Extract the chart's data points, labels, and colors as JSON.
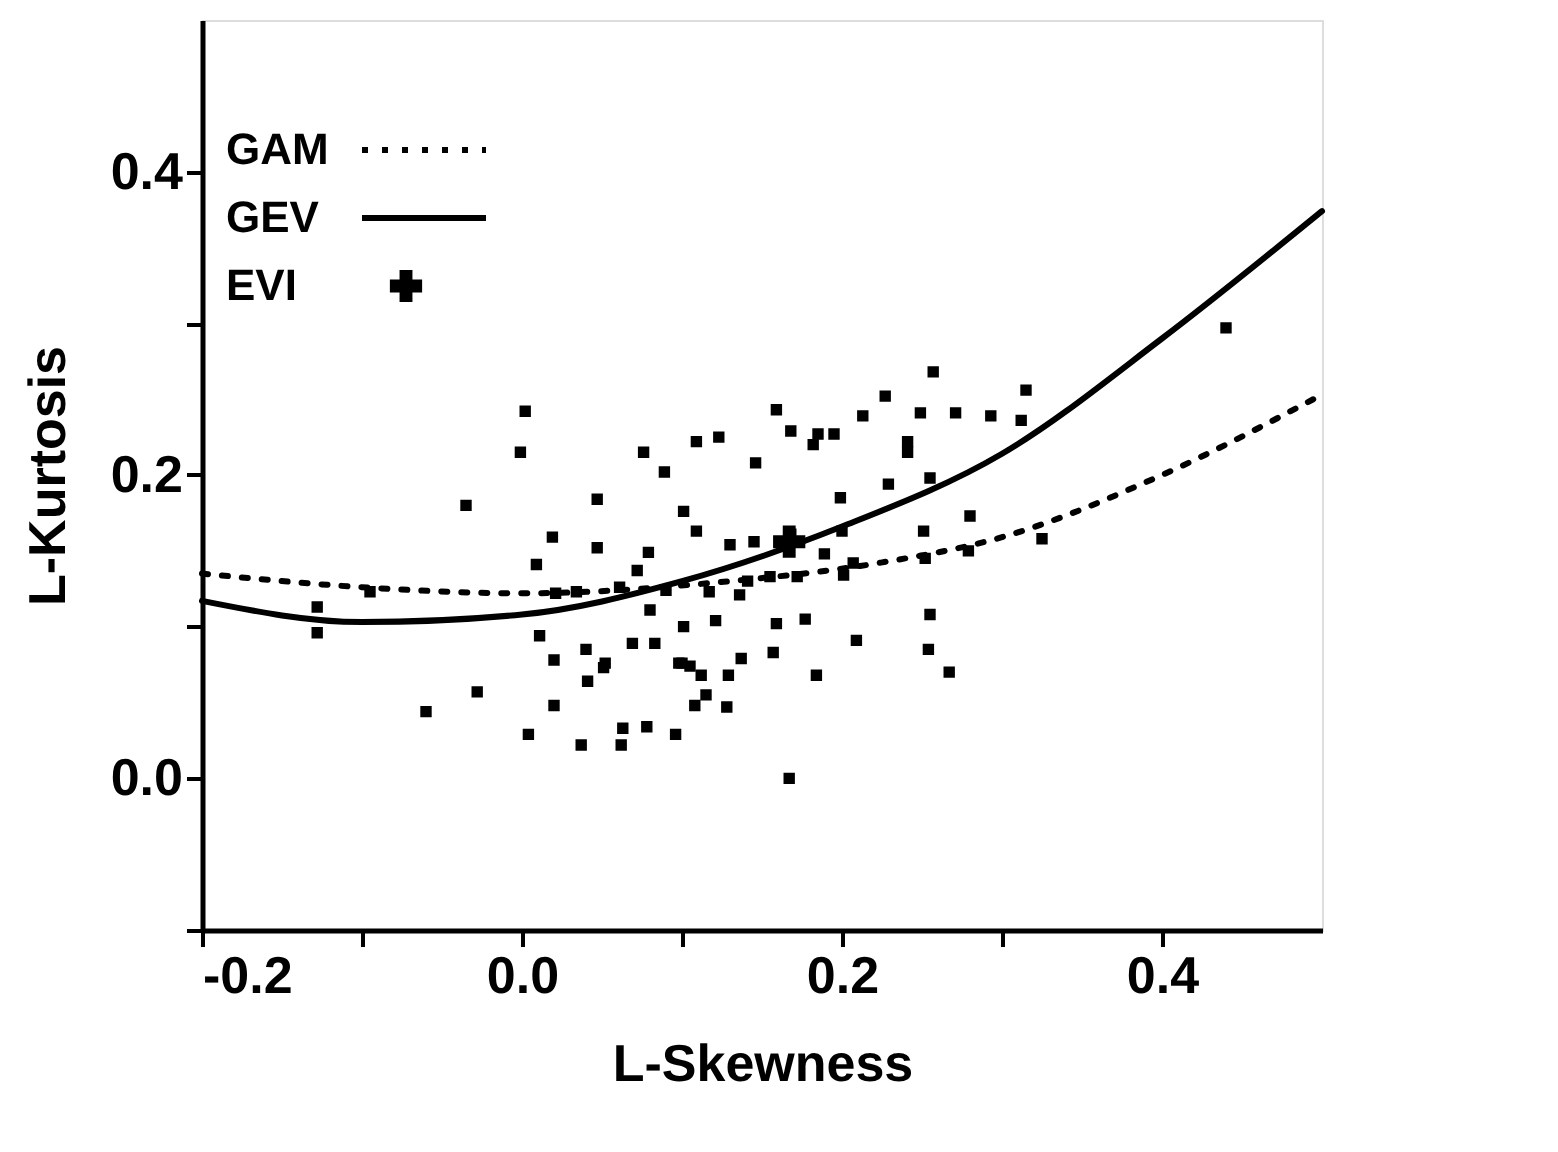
{
  "chart_data": {
    "type": "scatter",
    "xlabel": "L-Skewness",
    "ylabel": "L-Kurtosis",
    "xlim": [
      -0.2,
      0.5
    ],
    "ylim": [
      -0.1,
      0.5
    ],
    "xticks": [
      {
        "value": -0.2,
        "label": "-0.2"
      },
      {
        "value": -0.1,
        "label": null
      },
      {
        "value": 0.0,
        "label": "0.0"
      },
      {
        "value": 0.1,
        "label": null
      },
      {
        "value": 0.2,
        "label": "0.2"
      },
      {
        "value": 0.3,
        "label": null
      },
      {
        "value": 0.4,
        "label": "0.4"
      }
    ],
    "yticks": [
      {
        "value": -0.1,
        "label": null
      },
      {
        "value": 0.0,
        "label": "0.0"
      },
      {
        "value": 0.1,
        "label": null
      },
      {
        "value": 0.2,
        "label": "0.2"
      },
      {
        "value": 0.3,
        "label": null
      },
      {
        "value": 0.4,
        "label": "0.4"
      }
    ],
    "grid": false,
    "legend": "top left",
    "series": [
      {
        "color": "#000000",
        "marker": "square",
        "x": [
          0.002,
          -0.001,
          -0.035,
          0.047,
          0.019,
          0.047,
          0.009,
          -0.095,
          0.021,
          0.034,
          -0.128,
          0.011,
          0.02,
          0.04,
          0.051,
          0.041,
          -0.028,
          0.02,
          -0.06,
          0.004,
          0.037,
          0.257,
          0.227,
          0.213,
          0.249,
          0.271,
          0.159,
          0.168,
          0.185,
          0.182,
          0.195,
          0.123,
          0.109,
          0.076,
          0.089,
          0.146,
          0.241,
          0.241,
          0.199,
          0.229,
          0.255,
          0.101,
          0.109,
          0.13,
          0.145,
          0.168,
          0.28,
          0.251,
          0.2,
          0.079,
          0.072,
          0.189,
          0.207,
          0.201,
          0.172,
          0.155,
          0.141,
          0.117,
          0.136,
          0.09,
          0.252,
          0.061,
          0.08,
          0.121,
          0.101,
          0.159,
          0.177,
          0.255,
          0.052,
          0.069,
          0.083,
          0.1,
          0.098,
          0.105,
          0.137,
          0.157,
          0.209,
          0.254,
          0.112,
          0.129,
          0.184,
          0.267,
          0.115,
          0.108,
          0.128,
          0.063,
          0.078,
          0.096,
          0.062,
          0.167,
          0.44,
          0.315,
          0.293,
          0.312,
          0.279,
          0.325,
          -0.128
        ],
        "values": [
          0.242,
          0.215,
          0.18,
          0.184,
          0.159,
          0.152,
          0.141,
          0.123,
          0.122,
          0.123,
          0.096,
          0.094,
          0.078,
          0.085,
          0.073,
          0.064,
          0.057,
          0.048,
          0.044,
          0.029,
          0.022,
          0.268,
          0.252,
          0.239,
          0.241,
          0.241,
          0.243,
          0.229,
          0.227,
          0.22,
          0.227,
          0.225,
          0.222,
          0.215,
          0.202,
          0.208,
          0.222,
          0.215,
          0.185,
          0.194,
          0.198,
          0.176,
          0.163,
          0.154,
          0.156,
          0.161,
          0.173,
          0.163,
          0.163,
          0.149,
          0.137,
          0.148,
          0.142,
          0.134,
          0.133,
          0.133,
          0.13,
          0.123,
          0.121,
          0.124,
          0.145,
          0.126,
          0.111,
          0.104,
          0.1,
          0.102,
          0.105,
          0.108,
          0.076,
          0.089,
          0.089,
          0.076,
          0.076,
          0.074,
          0.079,
          0.083,
          0.091,
          0.085,
          0.068,
          0.068,
          0.068,
          0.07,
          0.055,
          0.048,
          0.047,
          0.033,
          0.034,
          0.029,
          0.022,
          0.0,
          0.297,
          0.256,
          0.239,
          0.236,
          0.15,
          0.158,
          0.113
        ]
      },
      {
        "type": "line",
        "name": "GAM",
        "color": "#000000",
        "line_style": "dotted",
        "x": [
          -0.2,
          -0.1,
          0.0,
          0.13,
          0.223,
          0.3,
          0.4,
          0.5
        ],
        "values": [
          0.135,
          0.126,
          0.122,
          0.13,
          0.142,
          0.159,
          0.2,
          0.253
        ]
      },
      {
        "type": "line",
        "name": "GEV",
        "color": "#000000",
        "line_style": "solid",
        "x": [
          -0.2,
          -0.1,
          0.0,
          0.1,
          0.2,
          0.3,
          0.4,
          0.5
        ],
        "values": [
          0.117,
          0.103,
          0.108,
          0.13,
          0.166,
          0.214,
          0.29,
          0.374
        ]
      },
      {
        "name": "EVI",
        "color": "#000000",
        "marker": "cross",
        "x": [
          0.167
        ],
        "values": [
          0.156
        ]
      }
    ]
  }
}
